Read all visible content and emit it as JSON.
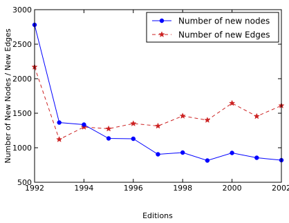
{
  "chart_data": {
    "type": "line",
    "xlabel": "Editions",
    "ylabel": "Number of New Nodes / New Edges",
    "xlim": [
      1992,
      2002
    ],
    "ylim": [
      500,
      3000
    ],
    "x_ticks": [
      "1992",
      "1994",
      "1996",
      "1998",
      "2000",
      "2002"
    ],
    "y_ticks": [
      "500",
      "1000",
      "1500",
      "2000",
      "2500",
      "3000"
    ],
    "grid": false,
    "legend_position": "top-right",
    "x": [
      1992,
      1993,
      1994,
      1995,
      1996,
      1997,
      1998,
      1999,
      2000,
      2001,
      2002
    ],
    "series": [
      {
        "name": "Number of new nodes",
        "color": "#0000ff",
        "line_style": "solid",
        "marker": "circle",
        "values": [
          2780,
          1365,
          1335,
          1135,
          1130,
          905,
          930,
          815,
          925,
          855,
          820
        ]
      },
      {
        "name": "Number of new Edges",
        "color": "#cc2222",
        "line_style": "dashed",
        "marker": "star",
        "values": [
          2170,
          1120,
          1300,
          1275,
          1350,
          1315,
          1460,
          1400,
          1645,
          1455,
          1610
        ]
      }
    ]
  }
}
